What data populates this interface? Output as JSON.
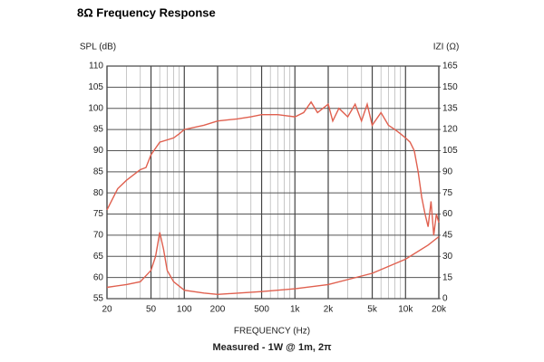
{
  "chart_data": {
    "type": "line",
    "title": "8Ω Frequency Response",
    "y_label": "SPL (dB)",
    "y2_label": "IZI (Ω)",
    "x_label": "FREQUENCY (Hz)",
    "caption": "Measured - 1W @ 1m, 2π",
    "log_x": true,
    "grid": true,
    "xlim": [
      20,
      20000
    ],
    "xticks": [
      20,
      50,
      100,
      200,
      500,
      {
        "value": 1000,
        "label": "1k"
      },
      {
        "value": 2000,
        "label": "2k"
      },
      {
        "value": 5000,
        "label": "5k"
      },
      {
        "value": 10000,
        "label": "10k"
      },
      {
        "value": 20000,
        "label": "20k"
      }
    ],
    "xminorticks": [
      30,
      40,
      60,
      70,
      80,
      90,
      300,
      400,
      600,
      700,
      800,
      900,
      3000,
      4000,
      6000,
      7000,
      8000,
      9000
    ],
    "ylim": [
      55,
      110
    ],
    "yticks": [
      55,
      60,
      65,
      70,
      75,
      80,
      85,
      90,
      95,
      100,
      105,
      110
    ],
    "y2lim": [
      0,
      165
    ],
    "y2ticks": [
      0,
      15,
      30,
      45,
      60,
      75,
      90,
      105,
      120,
      135,
      150,
      165
    ],
    "series": [
      {
        "color": "#e0604f",
        "x": [
          20,
          25,
          30,
          40,
          45,
          50,
          60,
          80,
          90,
          100,
          150,
          200,
          300,
          400,
          500,
          700,
          1000,
          1200,
          1400,
          1600,
          2000,
          2200,
          2500,
          3000,
          3500,
          4000,
          4500,
          5000,
          6000,
          7000,
          8000,
          9000,
          10000,
          11000,
          12000,
          13000,
          14000,
          15000,
          16000,
          17000,
          18000,
          19000,
          20000
        ],
        "values": [
          76,
          81,
          83,
          85.5,
          86,
          89,
          92,
          93,
          94,
          95,
          96,
          97,
          97.5,
          98,
          98.5,
          98.5,
          98,
          99,
          101.5,
          99,
          101,
          97,
          100,
          98,
          101,
          97,
          101,
          96,
          99,
          96,
          95,
          94,
          93,
          92,
          90,
          85,
          79,
          75,
          72,
          78,
          70,
          75,
          73
        ]
      },
      {
        "color": "#e0604f",
        "axis": "y2",
        "x": [
          20,
          30,
          40,
          50,
          55,
          60,
          65,
          70,
          80,
          100,
          150,
          200,
          500,
          1000,
          2000,
          5000,
          10000,
          16000,
          20000
        ],
        "values": [
          8,
          10,
          12,
          20,
          30,
          47,
          35,
          20,
          12,
          6,
          4,
          3,
          5,
          7,
          10,
          18,
          28,
          38,
          44
        ]
      }
    ]
  }
}
